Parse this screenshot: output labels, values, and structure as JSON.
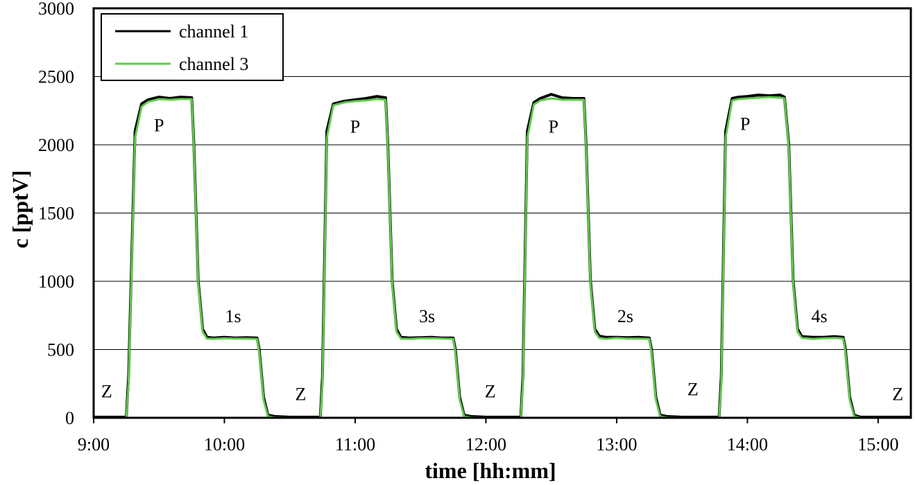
{
  "chart_data": {
    "type": "line",
    "title": "",
    "xlabel": "time [hh:mm]",
    "ylabel": "c [pptV]",
    "xlim": [
      "9:00",
      "15:15"
    ],
    "ylim": [
      0,
      3000
    ],
    "xticks": [
      "9:00",
      "10:00",
      "11:00",
      "12:00",
      "13:00",
      "14:00",
      "15:00"
    ],
    "yticks": [
      "0",
      "500",
      "1000",
      "1500",
      "2000",
      "2500",
      "3000"
    ],
    "grid": "horizontal",
    "legend_position": "top-left",
    "series": [
      {
        "name": "channel 1",
        "color": "#000000",
        "x": [
          "9:00",
          "9:15",
          "9:16",
          "9:19",
          "9:22",
          "9:25",
          "9:30",
          "9:35",
          "9:40",
          "9:45",
          "9:46",
          "9:48",
          "9:50",
          "9:52",
          "9:55",
          "10:00",
          "10:05",
          "10:10",
          "10:15",
          "10:16",
          "10:18",
          "10:20",
          "10:23",
          "10:30",
          "10:40",
          "10:44",
          "10:45",
          "10:47",
          "10:50",
          "10:55",
          "11:00",
          "11:05",
          "11:10",
          "11:14",
          "11:15",
          "11:17",
          "11:19",
          "11:21",
          "11:25",
          "11:30",
          "11:35",
          "11:40",
          "11:45",
          "11:46",
          "11:48",
          "11:50",
          "11:53",
          "12:00",
          "12:10",
          "12:16",
          "12:17",
          "12:19",
          "12:22",
          "12:25",
          "12:30",
          "12:35",
          "12:40",
          "12:45",
          "12:46",
          "12:48",
          "12:50",
          "12:52",
          "12:55",
          "13:00",
          "13:05",
          "13:10",
          "13:15",
          "13:16",
          "13:18",
          "13:20",
          "13:23",
          "13:30",
          "13:40",
          "13:47",
          "13:48",
          "13:50",
          "13:53",
          "13:56",
          "14:00",
          "14:05",
          "14:10",
          "14:15",
          "14:17",
          "14:19",
          "14:21",
          "14:23",
          "14:25",
          "14:30",
          "14:35",
          "14:40",
          "14:44",
          "14:45",
          "14:47",
          "14:49",
          "14:52",
          "15:00",
          "15:15"
        ],
        "values": [
          5,
          5,
          300,
          2100,
          2300,
          2330,
          2350,
          2340,
          2350,
          2345,
          2000,
          1000,
          650,
          590,
          585,
          590,
          585,
          588,
          585,
          500,
          150,
          20,
          10,
          5,
          5,
          5,
          300,
          2100,
          2300,
          2320,
          2330,
          2340,
          2355,
          2345,
          2000,
          1000,
          650,
          590,
          585,
          588,
          590,
          585,
          585,
          500,
          150,
          20,
          10,
          5,
          5,
          5,
          300,
          2100,
          2310,
          2340,
          2370,
          2345,
          2340,
          2340,
          2000,
          1000,
          650,
          600,
          590,
          590,
          588,
          590,
          585,
          500,
          150,
          20,
          10,
          5,
          5,
          5,
          300,
          2100,
          2340,
          2350,
          2355,
          2365,
          2360,
          2365,
          2350,
          2000,
          1000,
          650,
          595,
          590,
          590,
          595,
          590,
          500,
          150,
          20,
          5,
          5,
          5
        ]
      },
      {
        "name": "channel 3",
        "color": "#5ec94a",
        "x": [
          "9:00",
          "9:15",
          "9:16",
          "9:19",
          "9:22",
          "9:25",
          "9:30",
          "9:35",
          "9:40",
          "9:45",
          "9:46",
          "9:48",
          "9:50",
          "9:52",
          "9:55",
          "10:00",
          "10:05",
          "10:10",
          "10:15",
          "10:16",
          "10:18",
          "10:20",
          "10:23",
          "10:30",
          "10:40",
          "10:44",
          "10:45",
          "10:47",
          "10:50",
          "10:55",
          "11:00",
          "11:05",
          "11:10",
          "11:14",
          "11:15",
          "11:17",
          "11:19",
          "11:21",
          "11:25",
          "11:30",
          "11:35",
          "11:40",
          "11:45",
          "11:46",
          "11:48",
          "11:50",
          "11:53",
          "12:00",
          "12:10",
          "12:16",
          "12:17",
          "12:19",
          "12:22",
          "12:25",
          "12:30",
          "12:35",
          "12:40",
          "12:45",
          "12:46",
          "12:48",
          "12:50",
          "12:52",
          "12:55",
          "13:00",
          "13:05",
          "13:10",
          "13:15",
          "13:16",
          "13:18",
          "13:20",
          "13:23",
          "13:30",
          "13:40",
          "13:47",
          "13:48",
          "13:50",
          "13:53",
          "13:56",
          "14:00",
          "14:05",
          "14:10",
          "14:15",
          "14:17",
          "14:19",
          "14:21",
          "14:23",
          "14:25",
          "14:30",
          "14:35",
          "14:40",
          "14:44",
          "14:45",
          "14:47",
          "14:49",
          "14:52",
          "15:00",
          "15:15"
        ],
        "values": [
          0,
          0,
          250,
          2050,
          2280,
          2315,
          2335,
          2330,
          2335,
          2335,
          1980,
          980,
          630,
          580,
          578,
          582,
          580,
          580,
          578,
          480,
          130,
          10,
          2,
          0,
          0,
          0,
          250,
          2050,
          2290,
          2310,
          2320,
          2325,
          2335,
          2330,
          1980,
          980,
          630,
          580,
          578,
          582,
          583,
          580,
          578,
          480,
          130,
          10,
          2,
          0,
          0,
          0,
          250,
          2050,
          2295,
          2325,
          2340,
          2330,
          2330,
          2330,
          1980,
          980,
          630,
          585,
          578,
          585,
          580,
          580,
          578,
          480,
          130,
          10,
          2,
          0,
          0,
          0,
          250,
          2050,
          2325,
          2335,
          2340,
          2345,
          2350,
          2345,
          2340,
          1980,
          980,
          630,
          585,
          578,
          582,
          585,
          580,
          480,
          130,
          10,
          0,
          0,
          0
        ]
      }
    ],
    "annotations": [
      {
        "text": "Z",
        "x": "9:06",
        "y": 150
      },
      {
        "text": "P",
        "x": "9:30",
        "y": 2100
      },
      {
        "text": "1s",
        "x": "10:04",
        "y": 700
      },
      {
        "text": "Z",
        "x": "10:35",
        "y": 130
      },
      {
        "text": "P",
        "x": "11:00",
        "y": 2090
      },
      {
        "text": "3s",
        "x": "11:33",
        "y": 700
      },
      {
        "text": "Z",
        "x": "12:02",
        "y": 150
      },
      {
        "text": "P",
        "x": "12:31",
        "y": 2090
      },
      {
        "text": "2s",
        "x": "13:04",
        "y": 700
      },
      {
        "text": "Z",
        "x": "13:35",
        "y": 165
      },
      {
        "text": "P",
        "x": "13:59",
        "y": 2110
      },
      {
        "text": "4s",
        "x": "14:33",
        "y": 700
      },
      {
        "text": "Z",
        "x": "15:09",
        "y": 130
      }
    ]
  }
}
